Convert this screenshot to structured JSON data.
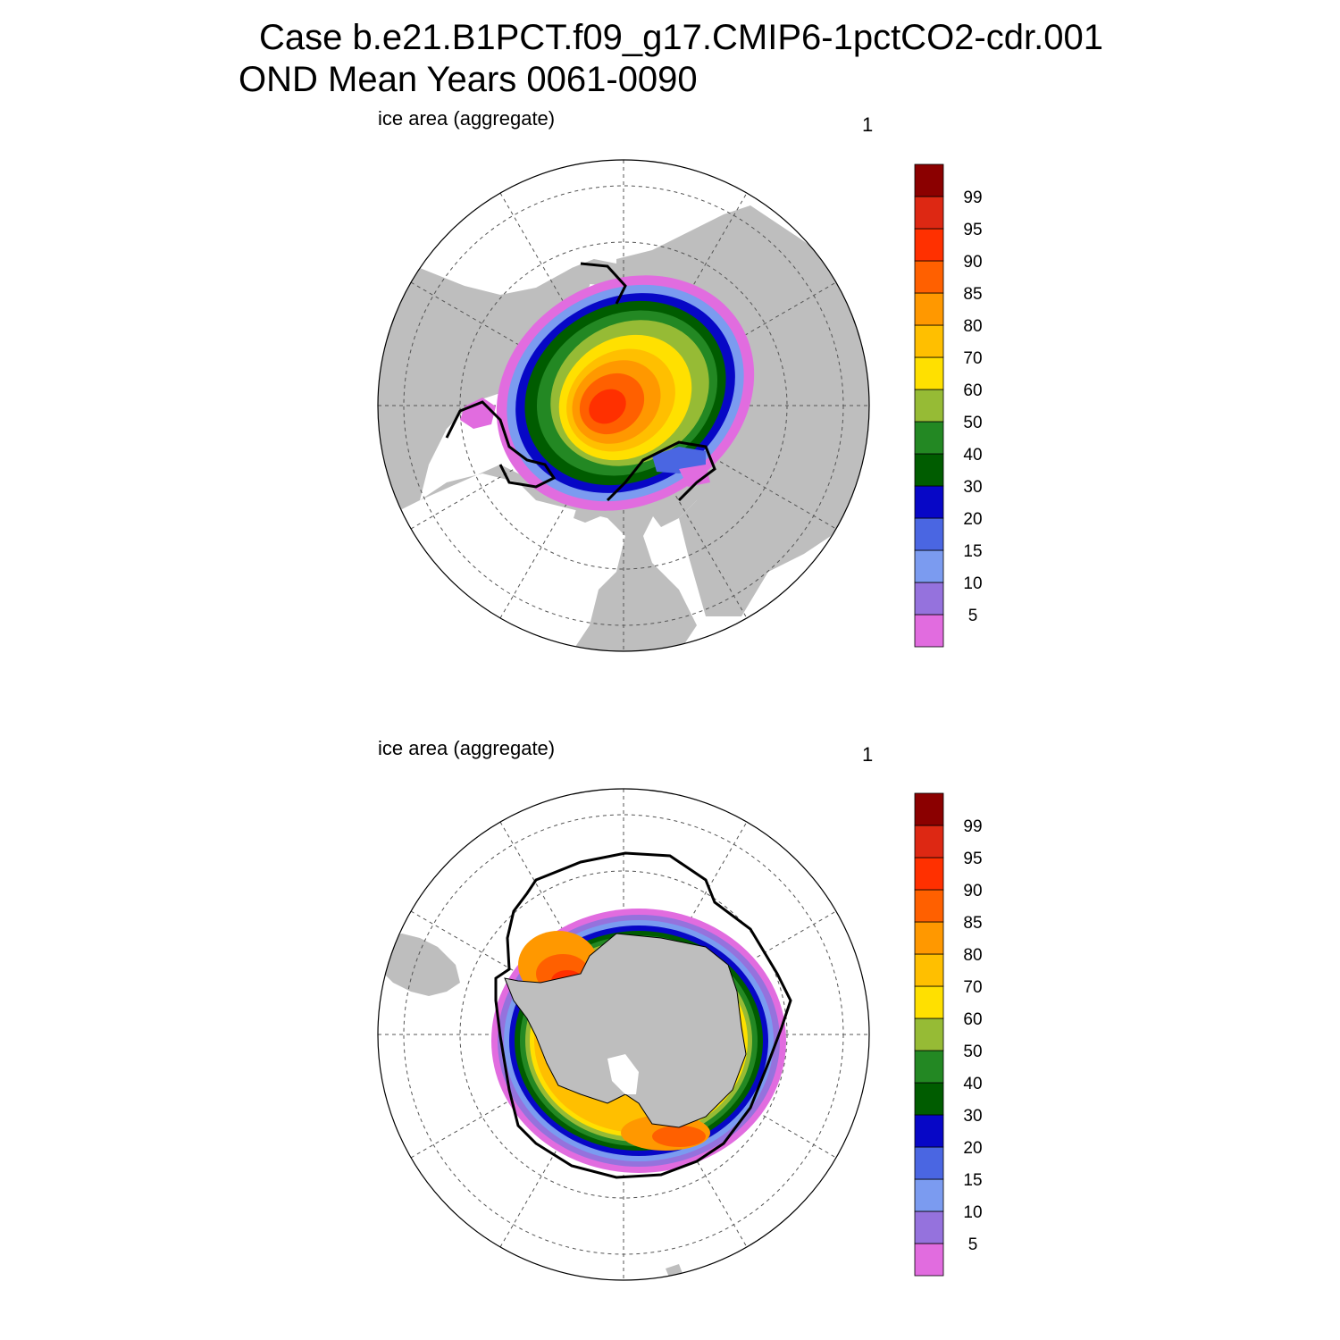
{
  "header": {
    "title_line1": "Case b.e21.B1PCT.f09_g17.CMIP6-1pctCO2-cdr.001",
    "title_line2": "OND Mean   Years 0061-0090"
  },
  "panels": [
    {
      "hemisphere": "north",
      "variable_label": "ice area  (aggregate)",
      "units": "1"
    },
    {
      "hemisphere": "south",
      "variable_label": "ice area  (aggregate)",
      "units": "1"
    }
  ],
  "colorbar": {
    "levels": [
      "5",
      "10",
      "15",
      "20",
      "30",
      "40",
      "50",
      "60",
      "70",
      "80",
      "85",
      "90",
      "95",
      "99"
    ],
    "colors": [
      "#e16cdf",
      "#9572dd",
      "#7b9bf0",
      "#4a66e2",
      "#0707c6",
      "#005c00",
      "#238823",
      "#96bb35",
      "#ffe000",
      "#ffbf00",
      "#ff9800",
      "#ff6000",
      "#ff3000",
      "#dd2813",
      "#8b0000"
    ]
  },
  "map_style": {
    "land_color": "#bebebe",
    "ocean_color": "#ffffff",
    "grid_line_style": "dashed",
    "observed_extent_line": "black contour"
  }
}
